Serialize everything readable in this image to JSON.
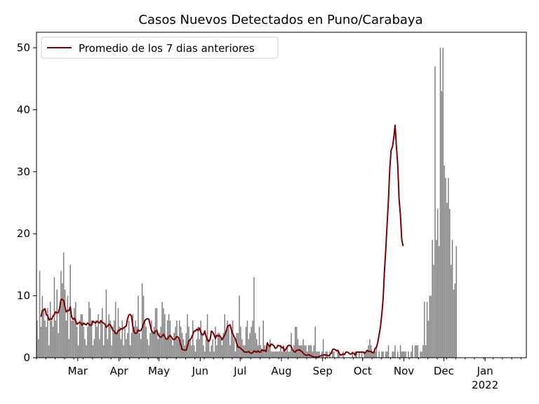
{
  "chart_data": {
    "type": "bar",
    "title": "Casos Nuevos Detectados en Puno/Carabaya",
    "xlabel": "",
    "ylabel": "",
    "ylim": [
      0,
      52.5
    ],
    "yticks": [
      0,
      10,
      20,
      30,
      40,
      50
    ],
    "x_start": "2021-01-28",
    "x_end": "2022-01-31",
    "xticks": [
      {
        "date": "2021-02-28",
        "label": "Mar"
      },
      {
        "date": "2021-03-31",
        "label": "Apr"
      },
      {
        "date": "2021-04-30",
        "label": "May"
      },
      {
        "date": "2021-05-31",
        "label": "Jun"
      },
      {
        "date": "2021-06-30",
        "label": "Jul"
      },
      {
        "date": "2021-07-31",
        "label": "Aug"
      },
      {
        "date": "2021-08-31",
        "label": "Sep"
      },
      {
        "date": "2021-09-30",
        "label": "Oct"
      },
      {
        "date": "2021-10-31",
        "label": "Nov"
      },
      {
        "date": "2021-11-30",
        "label": "Dec"
      },
      {
        "date": "2021-12-31",
        "label": "Jan\n2022"
      }
    ],
    "bar_color": "#808080",
    "line_color": "#800000",
    "legend": {
      "position": "top-left",
      "label": "Promedio de los 7 dias anteriores"
    },
    "grid": false,
    "series": [
      {
        "name": "",
        "kind": "bar",
        "start": "2021-01-28",
        "values": [
          6,
          3,
          14,
          5,
          10,
          8,
          6,
          5,
          8,
          2,
          9,
          6,
          5,
          13,
          6,
          11,
          4,
          8,
          14,
          12,
          17,
          11,
          6,
          10,
          3,
          15,
          6,
          6,
          8,
          9,
          5,
          2,
          6,
          7,
          7,
          5,
          3,
          2,
          5,
          9,
          8,
          6,
          2,
          3,
          6,
          5,
          7,
          3,
          6,
          8,
          2,
          5,
          11,
          3,
          7,
          6,
          2,
          5,
          6,
          9,
          4,
          8,
          5,
          3,
          6,
          2,
          5,
          3,
          4,
          6,
          2,
          4,
          7,
          5,
          6,
          5,
          10,
          4,
          3,
          12,
          10,
          6,
          5,
          3,
          2,
          4,
          6,
          4,
          5,
          8,
          8,
          3,
          4,
          5,
          9,
          8,
          7,
          3,
          6,
          7,
          6,
          3,
          2,
          4,
          5,
          6,
          3,
          6,
          5,
          4,
          3,
          2,
          4,
          7,
          5,
          3,
          2,
          6,
          2,
          1,
          3,
          5,
          3,
          6,
          4,
          2,
          1,
          3,
          7,
          3,
          1,
          2,
          3,
          1,
          5,
          2,
          4,
          4,
          3,
          2,
          4,
          7,
          4,
          6,
          5,
          2,
          5,
          6,
          3,
          1,
          4,
          4,
          10,
          5,
          3,
          2,
          2,
          5,
          6,
          3,
          4,
          5,
          6,
          13,
          4,
          3,
          2,
          5,
          2,
          1,
          6,
          2,
          1,
          2,
          2,
          3,
          1,
          1,
          1,
          1,
          1,
          1,
          1,
          2,
          1,
          2,
          1,
          1,
          2,
          1,
          1,
          4,
          1,
          2,
          5,
          5,
          3,
          2,
          2,
          2,
          3,
          2,
          2,
          1,
          2,
          2,
          2,
          1,
          2,
          5,
          1,
          1,
          1,
          0,
          1,
          3,
          0,
          1,
          1,
          0,
          1,
          0,
          1,
          1,
          0,
          0,
          1,
          1,
          0,
          0,
          1,
          0,
          0,
          0,
          0,
          0,
          0,
          1,
          0,
          1,
          1,
          0,
          1,
          0,
          1,
          0,
          1,
          1,
          1,
          2,
          3,
          2,
          1,
          1,
          1,
          2,
          0,
          1,
          0,
          1,
          1,
          0,
          1,
          1,
          2,
          0,
          0,
          1,
          1,
          2,
          0,
          1,
          0,
          2,
          1,
          1,
          1,
          1,
          0,
          1,
          0,
          1,
          2,
          0,
          2,
          2,
          2,
          0,
          1,
          1,
          2,
          9,
          2,
          9,
          6,
          10,
          10,
          19,
          15,
          47,
          19,
          24,
          18,
          50,
          43,
          50,
          31,
          29,
          25,
          29,
          24,
          15,
          19,
          11,
          12,
          18
        ]
      },
      {
        "name": "Promedio de los 7 dias anteriores",
        "kind": "line",
        "start": "2021-01-31",
        "values": [
          6.6,
          7.6,
          7.7,
          7.9,
          6.9,
          6.8,
          6.1,
          6.3,
          6.2,
          6.7,
          7.0,
          7.4,
          7.2,
          7.3,
          8.0,
          9.4,
          9.4,
          9.2,
          8.2,
          7.4,
          7.6,
          7.6,
          8.2,
          6.6,
          6.2,
          6.4,
          6.0,
          5.4,
          5.6,
          5.7,
          5.6,
          5.2,
          5.6,
          5.4,
          5.3,
          5.6,
          5.4,
          5.2,
          5.3,
          5.9,
          5.7,
          5.6,
          5.9,
          5.7,
          5.6,
          6.0,
          5.7,
          5.6,
          5.4,
          4.9,
          5.1,
          5.4,
          5.3,
          4.9,
          4.4,
          4.3,
          3.9,
          3.9,
          4.4,
          4.4,
          4.7,
          4.6,
          4.8,
          5.0,
          5.1,
          6.3,
          6.9,
          7.0,
          6.7,
          5.0,
          4.1,
          3.9,
          4.0,
          4.5,
          4.3,
          4.4,
          4.8,
          5.5,
          6.0,
          6.2,
          6.3,
          6.2,
          5.3,
          4.4,
          4.1,
          3.9,
          4.3,
          4.4,
          3.7,
          3.4,
          3.3,
          3.5,
          3.8,
          3.4,
          3.0,
          3.0,
          3.4,
          3.6,
          3.3,
          3.0,
          2.9,
          3.1,
          3.4,
          3.3,
          2.9,
          2.1,
          1.3,
          1.3,
          1.2,
          1.2,
          1.9,
          2.7,
          2.9,
          3.2,
          3.7,
          4.3,
          4.3,
          4.6,
          4.4,
          4.8,
          4.1,
          3.7,
          3.7,
          4.3,
          3.4,
          2.9,
          2.6,
          2.9,
          4.3,
          4.1,
          3.7,
          3.1,
          3.6,
          3.5,
          3.6,
          3.3,
          2.9,
          3.3,
          3.7,
          4.2,
          5.0,
          5.2,
          5.3,
          4.5,
          3.9,
          3.4,
          3.0,
          2.3,
          1.7,
          1.7,
          1.5,
          1.3,
          1.1,
          0.9,
          0.9,
          0.9,
          1.0,
          0.8,
          0.7,
          0.8,
          1.1,
          1.0,
          0.9,
          1.1,
          0.9,
          0.9,
          1.3,
          1.1,
          1.2,
          1.0,
          2.4,
          2.0,
          1.8,
          2.2,
          2.1,
          1.9,
          1.5,
          1.6,
          2.0,
          1.9,
          1.9,
          1.6,
          1.7,
          1.1,
          1.4,
          1.8,
          2.0,
          2.0,
          1.8,
          1.2,
          1.0,
          0.9,
          1.2,
          1.2,
          1.3,
          1.1,
          1.0,
          0.7,
          0.5,
          0.4,
          0.4,
          0.5,
          0.4,
          0.3,
          0.2,
          0.1,
          0.1,
          0.1,
          0.1,
          0.2,
          0.3,
          0.4,
          0.4,
          0.5,
          0.4,
          0.4,
          0.3,
          0.5,
          0.7,
          1.3,
          1.4,
          1.3,
          1.1,
          1.2,
          0.7,
          0.4,
          0.5,
          0.6,
          0.5,
          0.9,
          0.9,
          0.8,
          0.6,
          0.6,
          0.8,
          0.7,
          0.4,
          0.9,
          0.9,
          0.9,
          0.9,
          0.9,
          0.9,
          0.7,
          0.9,
          1.2,
          1.0,
          1.0,
          1.0,
          0.8,
          0.8,
          1.5,
          1.7,
          2.5,
          3.7,
          5.0,
          7.0,
          9.5,
          14.0,
          17.5,
          21.5,
          25.5,
          30.5,
          33.5,
          34.0,
          35.5,
          37.5,
          34.0,
          31.0,
          25.5,
          23.0,
          19.0,
          18.0
        ]
      }
    ]
  }
}
